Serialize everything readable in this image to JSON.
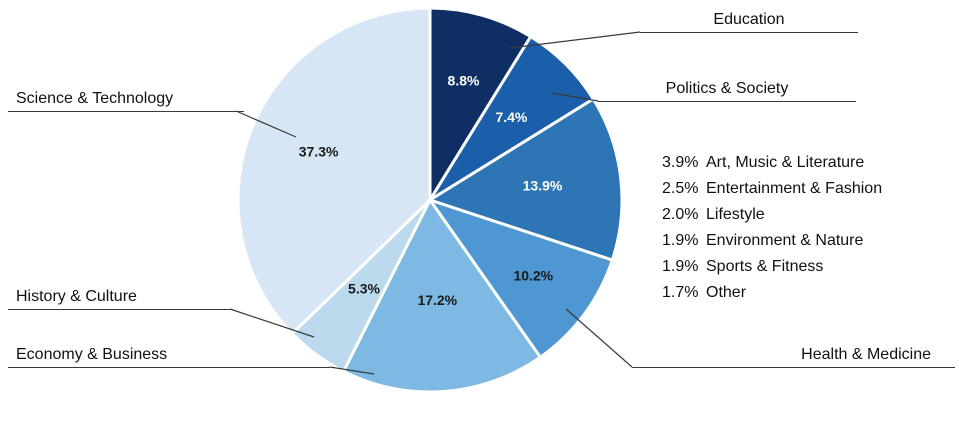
{
  "chart_data": {
    "type": "pie",
    "unit": "%",
    "direction": "clockwise",
    "start_angle_deg": 0,
    "slices": [
      {
        "label": "Education",
        "value": 8.8,
        "color": "#0f2e63",
        "value_label_color": "#ffffff"
      },
      {
        "label": "Politics & Society",
        "value": 7.4,
        "color": "#1b5ea9",
        "value_label_color": "#ffffff"
      },
      {
        "label": "",
        "value": 13.9,
        "color": "#2e75b6",
        "value_label_color": "#ffffff"
      },
      {
        "label": "Health & Medicine",
        "value": 10.2,
        "color": "#4f97d3",
        "value_label_color": "#1a1a1a"
      },
      {
        "label": "Economy & Business",
        "value": 17.2,
        "color": "#7db9e2",
        "value_label_color": "#1a1a1a"
      },
      {
        "label": "History & Culture",
        "value": 5.3,
        "color": "#bcd9ee",
        "value_label_color": "#1a1a1a"
      },
      {
        "label": "Science & Technology",
        "value": 37.3,
        "color": "#d6e6f5",
        "value_label_color": "#1a1a1a"
      }
    ],
    "slice_13_9_breakdown": [
      {
        "value": 3.9,
        "label": "Art, Music & Literature"
      },
      {
        "value": 2.5,
        "label": "Entertainment & Fashion"
      },
      {
        "value": 2.0,
        "label": "Lifestyle"
      },
      {
        "value": 1.9,
        "label": "Environment & Nature"
      },
      {
        "value": 1.9,
        "label": "Sports & Fitness"
      },
      {
        "value": 1.7,
        "label": "Other"
      }
    ]
  }
}
